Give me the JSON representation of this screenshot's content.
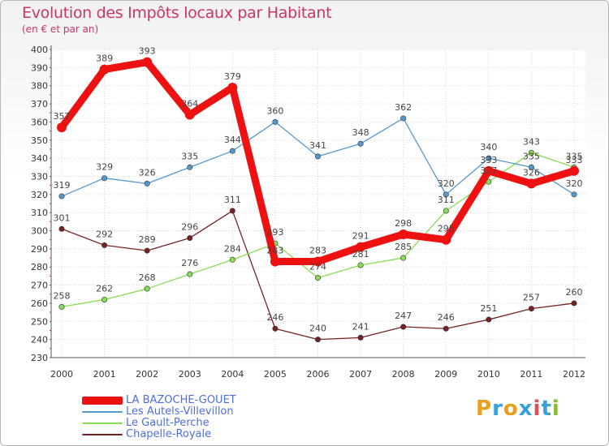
{
  "chart_data": {
    "type": "line",
    "title": "Evolution des Impôts locaux par Habitant",
    "subtitle": "(en € et par an)",
    "xlabel": "",
    "ylabel": "",
    "ylim": [
      230,
      400
    ],
    "ytick_step": 10,
    "grid": true,
    "x": [
      "2000",
      "2001",
      "2002",
      "2003",
      "2004",
      "2005",
      "2006",
      "2007",
      "2008",
      "2009",
      "2010",
      "2011",
      "2012"
    ],
    "series": [
      {
        "name": "LA BAZOCHE-GOUET",
        "color": "#ee1111",
        "values": [
          357,
          389,
          393,
          364,
          379,
          283,
          283,
          291,
          298,
          295,
          333,
          326,
          333
        ]
      },
      {
        "name": "Les Autels-Villevillon",
        "color": "#5599cc",
        "values": [
          319,
          329,
          326,
          335,
          344,
          360,
          341,
          348,
          362,
          320,
          340,
          335,
          320
        ]
      },
      {
        "name": "Le Gault-Perche",
        "color": "#88dd55",
        "values": [
          258,
          262,
          268,
          276,
          284,
          293,
          274,
          281,
          285,
          311,
          327,
          343,
          335
        ]
      },
      {
        "name": "Chapelle-Royale",
        "color": "#772222",
        "values": [
          301,
          292,
          289,
          296,
          311,
          246,
          240,
          241,
          247,
          246,
          251,
          257,
          260
        ]
      }
    ],
    "legend_position": "bottom-left"
  },
  "logo": {
    "text": "Proxiti",
    "letters": [
      {
        "c": "P",
        "color": "#e8a020"
      },
      {
        "c": "r",
        "color": "#3aa0d8"
      },
      {
        "c": "o",
        "color": "#e8a020"
      },
      {
        "c": "x",
        "color": "#3aa0d8"
      },
      {
        "c": "i",
        "color": "#e05050"
      },
      {
        "c": "t",
        "color": "#3aa0d8"
      },
      {
        "c": "i",
        "color": "#88bb33"
      }
    ]
  }
}
